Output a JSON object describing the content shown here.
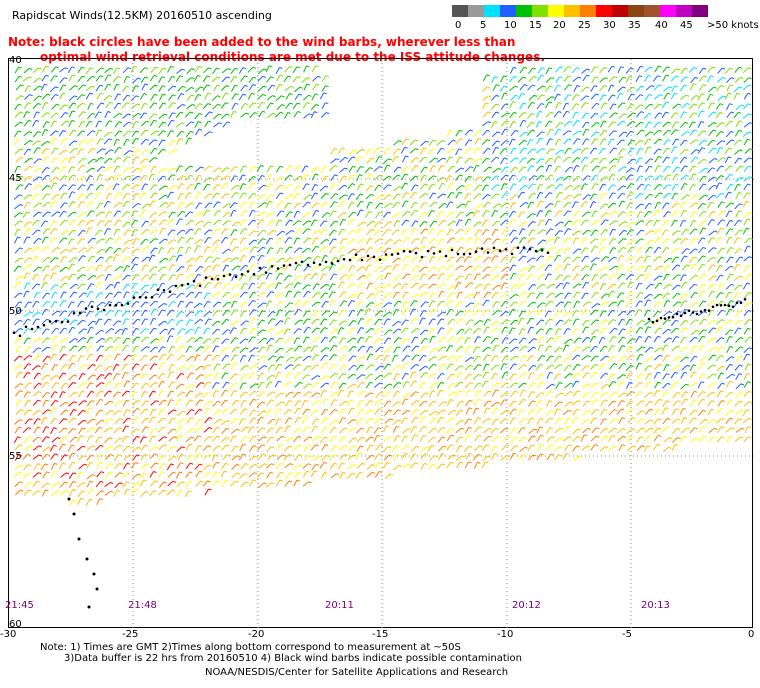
{
  "header": {
    "title": "Rapidscat Winds(12.5KM) 20160510 ascending",
    "note_line1": "Note: black circles have been added to the wind barbs, wherever less than",
    "note_line2": "optimal wind retrieval conditions are met due to the ISS attitude changes."
  },
  "colorbar": {
    "labels": [
      "0",
      "5",
      "10",
      "15",
      "20",
      "25",
      "30",
      "35",
      "40",
      "45",
      ">50 knots"
    ],
    "colors": [
      "#555555",
      "#9a9a9a",
      "#00e0ff",
      "#2060ff",
      "#00c000",
      "#80e000",
      "#ffff00",
      "#ffc000",
      "#ff8000",
      "#ff0000",
      "#c00000",
      "#8b4513",
      "#a0522d",
      "#ff00ff",
      "#c000c0",
      "#800080"
    ]
  },
  "map": {
    "lon_ticks": [
      "-30",
      "-25",
      "-20",
      "-15",
      "-10",
      "-5",
      "0"
    ],
    "lat_labels": [
      "40",
      "45",
      "50",
      "55",
      "60"
    ],
    "time_labels": [
      "21:45",
      "21:48",
      "20:11",
      "20:12",
      "20:13"
    ]
  },
  "footer": {
    "line1": "Note: 1) Times are GMT 2)Times along bottom correspond to measurement at ~50S",
    "line2": "3)Data buffer is 22 hrs from 20160510 4) Black wind barbs indicate possible contamination",
    "credit": "NOAA/NESDIS/Center for Satellite Applications and Research"
  }
}
